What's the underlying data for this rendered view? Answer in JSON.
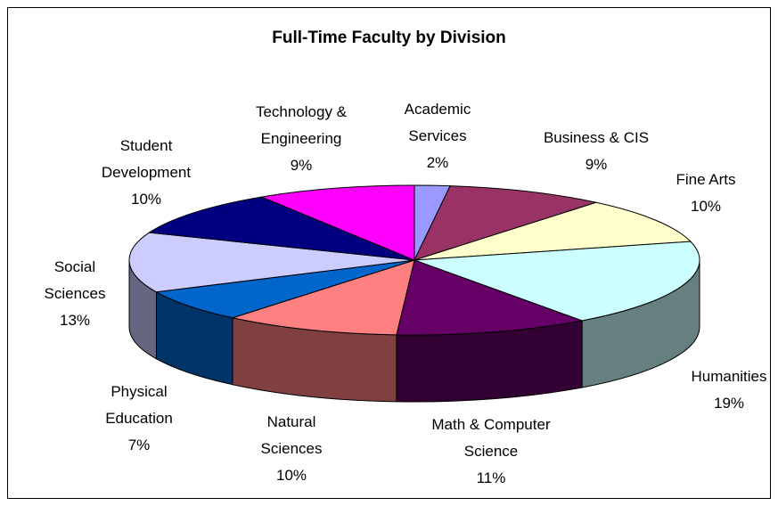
{
  "chart_data": {
    "type": "pie",
    "title": "Full-Time Faculty by Division",
    "categories": [
      "Academic Services",
      "Business & CIS",
      "Fine Arts",
      "Humanities",
      "Math & Computer Science",
      "Natural Sciences",
      "Physical Education",
      "Social Sciences",
      "Student Development",
      "Technology & Engineering"
    ],
    "values": [
      2,
      9,
      10,
      19,
      11,
      10,
      7,
      13,
      10,
      9
    ],
    "value_labels": [
      "2%",
      "9%",
      "10%",
      "19%",
      "11%",
      "10%",
      "7%",
      "13%",
      "10%",
      "9%"
    ],
    "colors": [
      "#9999ff",
      "#993366",
      "#ffffcc",
      "#ccffff",
      "#660066",
      "#ff8080",
      "#0066cc",
      "#ccccff",
      "#000080",
      "#ff00ff"
    ]
  }
}
